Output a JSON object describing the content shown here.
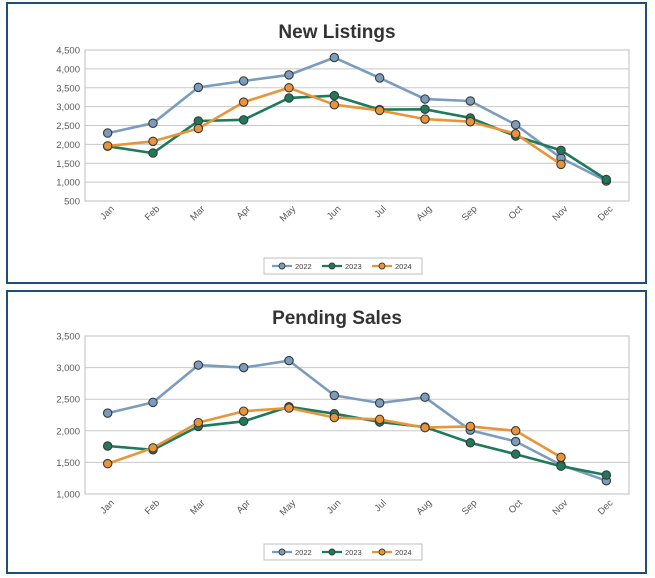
{
  "chart_data": [
    {
      "type": "line",
      "title": "New Listings",
      "xlabel": "",
      "ylabel": "",
      "categories": [
        "Jan",
        "Feb",
        "Mar",
        "Apr",
        "May",
        "Jun",
        "Jul",
        "Aug",
        "Sep",
        "Oct",
        "Nov",
        "Dec"
      ],
      "ylim": [
        500,
        4500
      ],
      "yticks": [
        500,
        1000,
        1500,
        2000,
        2500,
        3000,
        3500,
        4000,
        4500
      ],
      "ytick_labels": [
        "500",
        "1,000",
        "1,500",
        "2,000",
        "2,500",
        "3,000",
        "3,500",
        "4,000",
        "4,500"
      ],
      "grid": true,
      "legend": "bottom",
      "series": [
        {
          "name": "2022",
          "color": "#7a9cbd",
          "values": [
            2300,
            2560,
            3510,
            3680,
            3840,
            4300,
            3760,
            3200,
            3150,
            2520,
            1640,
            1030
          ]
        },
        {
          "name": "2023",
          "color": "#1f7a5c",
          "values": [
            1950,
            1770,
            2620,
            2650,
            3230,
            3290,
            2920,
            2930,
            2700,
            2220,
            1840,
            1070
          ]
        },
        {
          "name": "2024",
          "color": "#e8953a",
          "values": [
            1960,
            2080,
            2420,
            3120,
            3500,
            3050,
            2900,
            2670,
            2600,
            2280,
            1470,
            null
          ]
        }
      ]
    },
    {
      "type": "line",
      "title": "Pending Sales",
      "xlabel": "",
      "ylabel": "",
      "categories": [
        "Jan",
        "Feb",
        "Mar",
        "Apr",
        "May",
        "Jun",
        "Jul",
        "Aug",
        "Sep",
        "Oct",
        "Nov",
        "Dec"
      ],
      "ylim": [
        1000,
        3500
      ],
      "yticks": [
        1000,
        1500,
        2000,
        2500,
        3000,
        3500
      ],
      "ytick_labels": [
        "1,000",
        "1,500",
        "2,000",
        "2,500",
        "3,000",
        "3,500"
      ],
      "grid": true,
      "legend": "bottom",
      "series": [
        {
          "name": "2022",
          "color": "#7a9cbd",
          "values": [
            2280,
            2450,
            3040,
            3000,
            3110,
            2560,
            2440,
            2530,
            2010,
            1830,
            1460,
            1210
          ]
        },
        {
          "name": "2023",
          "color": "#1f7a5c",
          "values": [
            1760,
            1700,
            2070,
            2150,
            2380,
            2270,
            2140,
            2060,
            1810,
            1630,
            1440,
            1300
          ]
        },
        {
          "name": "2024",
          "color": "#e8953a",
          "values": [
            1480,
            1730,
            2130,
            2310,
            2360,
            2210,
            2180,
            2050,
            2070,
            2000,
            1580,
            null
          ]
        }
      ]
    }
  ]
}
